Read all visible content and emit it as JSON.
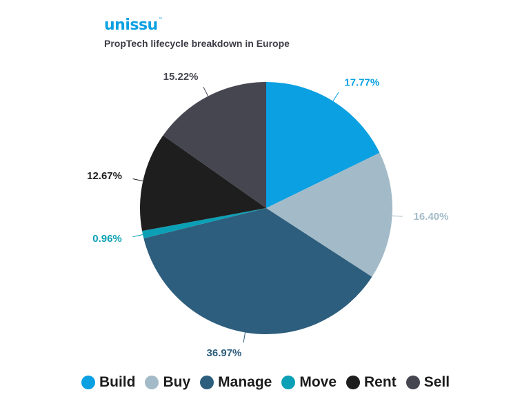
{
  "brand": {
    "name": "unissu",
    "mark": "™"
  },
  "subtitle": "PropTech lifecycle breakdown in Europe",
  "chart_data": {
    "type": "pie",
    "title": "PropTech lifecycle breakdown in Europe",
    "legend_position": "bottom",
    "categories": [
      "Build",
      "Buy",
      "Manage",
      "Move",
      "Rent",
      "Sell"
    ],
    "values": [
      17.77,
      16.4,
      36.97,
      0.96,
      12.67,
      15.22
    ],
    "labels": [
      "17.77%",
      "16.40%",
      "36.97%",
      "0.96%",
      "12.67%",
      "15.22%"
    ],
    "colors": [
      "#0aa0e2",
      "#a3bbc8",
      "#2e5e7d",
      "#0ba0b5",
      "#1e1e1e",
      "#454650"
    ],
    "label_colors": [
      "#0aa0e2",
      "#a3bbc8",
      "#2e5e7d",
      "#0ba0b5",
      "#1e1e1e",
      "#454650"
    ]
  }
}
